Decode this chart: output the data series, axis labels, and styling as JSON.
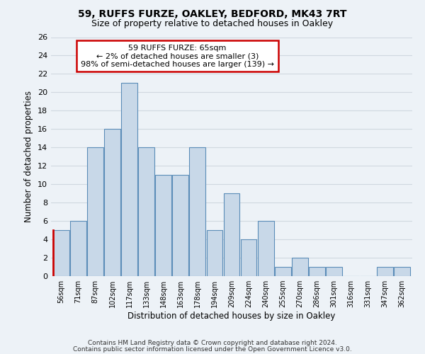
{
  "title": "59, RUFFS FURZE, OAKLEY, BEDFORD, MK43 7RT",
  "subtitle": "Size of property relative to detached houses in Oakley",
  "xlabel": "Distribution of detached houses by size in Oakley",
  "ylabel": "Number of detached properties",
  "bin_labels": [
    "56sqm",
    "71sqm",
    "87sqm",
    "102sqm",
    "117sqm",
    "133sqm",
    "148sqm",
    "163sqm",
    "178sqm",
    "194sqm",
    "209sqm",
    "224sqm",
    "240sqm",
    "255sqm",
    "270sqm",
    "286sqm",
    "301sqm",
    "316sqm",
    "331sqm",
    "347sqm",
    "362sqm"
  ],
  "bar_heights": [
    5,
    6,
    14,
    16,
    21,
    14,
    11,
    11,
    14,
    5,
    9,
    4,
    6,
    1,
    2,
    1,
    1,
    0,
    0,
    1,
    1
  ],
  "bar_color": "#c8d8e8",
  "bar_edge_color": "#5b8db8",
  "highlight_bar_index": 0,
  "highlight_edge_color": "#cc0000",
  "annotation_text": "59 RUFFS FURZE: 65sqm\n← 2% of detached houses are smaller (3)\n98% of semi-detached houses are larger (139) →",
  "annotation_box_edge_color": "#cc0000",
  "annotation_box_face_color": "#ffffff",
  "ylim": [
    0,
    26
  ],
  "yticks": [
    0,
    2,
    4,
    6,
    8,
    10,
    12,
    14,
    16,
    18,
    20,
    22,
    24,
    26
  ],
  "grid_color": "#d0d8e0",
  "background_color": "#edf2f7",
  "footer_line1": "Contains HM Land Registry data © Crown copyright and database right 2024.",
  "footer_line2": "Contains public sector information licensed under the Open Government Licence v3.0."
}
